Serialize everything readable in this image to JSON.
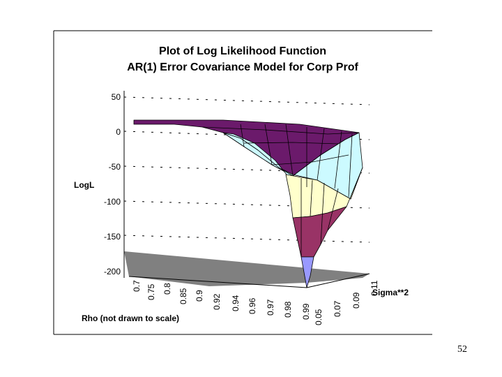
{
  "page": {
    "number": "52"
  },
  "chart_data": {
    "type": "surface",
    "title": "Plot of Log Likelihood Function",
    "subtitle": "AR(1) Error Covariance Model for Corp Prof",
    "zlabel": "LogL",
    "xlabel": "Rho (not drawn to scale)",
    "ylabel": "Sigma**2",
    "zlim": [
      -200,
      50
    ],
    "z_ticks": [
      "50",
      "0",
      "-50",
      "-100",
      "-150",
      "-200"
    ],
    "x_ticks": [
      "0.7",
      "0.75",
      "0.8",
      "0.85",
      "0.9",
      "0.92",
      "0.94",
      "0.96",
      "0.97",
      "0.98",
      "0.99"
    ],
    "y_ticks": [
      "0.05",
      "0.07",
      "0.09",
      "0.11"
    ],
    "band_colors": [
      "#6b1a6b",
      "#ccfaff",
      "#ffffcc",
      "#993366",
      "#9999ff"
    ],
    "bands": [
      "0-50",
      "-50-0",
      "-100--50",
      "-150--100",
      "-200--150"
    ],
    "colors": {
      "floor": "#808080",
      "grid": "#000000"
    }
  }
}
